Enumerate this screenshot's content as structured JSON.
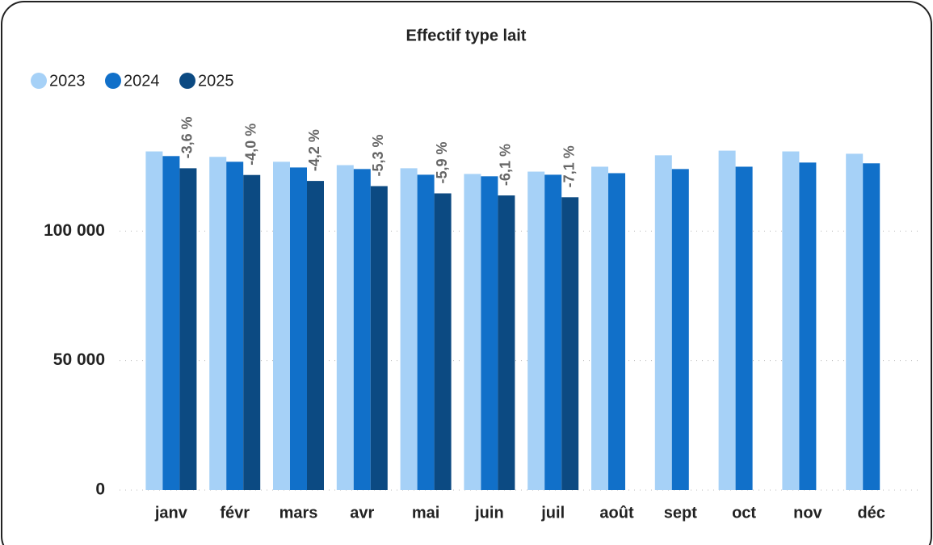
{
  "chart_data": {
    "type": "bar",
    "title": "Effectif type lait",
    "categories": [
      "janv",
      "févr",
      "mars",
      "avr",
      "mai",
      "juin",
      "juil",
      "août",
      "sept",
      "oct",
      "nov",
      "déc"
    ],
    "series": [
      {
        "name": "2023",
        "color": "#a6d1f7",
        "values": [
          130800,
          128700,
          126800,
          125500,
          124300,
          122100,
          123000,
          124900,
          129300,
          131100,
          130800,
          129900
        ]
      },
      {
        "name": "2024",
        "color": "#1170c9",
        "values": [
          129000,
          126800,
          124600,
          124000,
          121800,
          121200,
          121800,
          122400,
          124000,
          124900,
          126500,
          126200
        ]
      },
      {
        "name": "2025",
        "color": "#0c4a82",
        "values": [
          124300,
          121700,
          119400,
          117400,
          114600,
          113800,
          113100,
          null,
          null,
          null,
          null,
          null
        ]
      }
    ],
    "annotations": [
      "-3,6 %",
      "-4,0 %",
      "-4,2 %",
      "-5,3 %",
      "-5,9 %",
      "-6,1 %",
      "-7,1 %"
    ],
    "ylim": [
      0,
      145000
    ],
    "yticks": [
      0,
      {
        "value": 50000,
        "label": "50 000"
      },
      {
        "value": 100000,
        "label": "100 000"
      }
    ],
    "grid": true,
    "legend": "top-left"
  }
}
